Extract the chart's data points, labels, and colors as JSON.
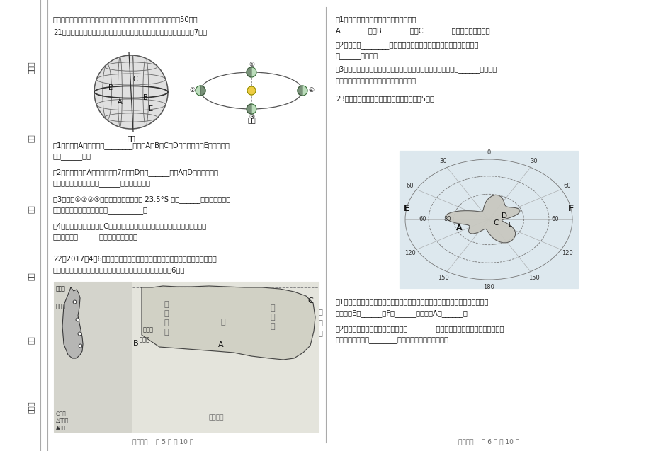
{
  "page_bg": "#ffffff",
  "paper_bg": "#ffffff",
  "text_color": "#1a1a1a",
  "figsize": [
    9.2,
    6.37
  ],
  "dpi": 100,
  "left_sidebar_labels": [
    "座位号",
    "考号",
    "姓名",
    "班级",
    "学校",
    "旗县区"
  ],
  "footer_left": "地理试题    第 5 页 共 10 页",
  "footer_right": "地理试题    第 6 页 共 10 页",
  "section_header": "二、综合题：（请将正确答案按要求写在答题卡对应位置上，本题偂50分）",
  "q21_header": "21、读「经纬网图甲和地球公转运动的二分二至日图乙」，回答问题：（7分）",
  "q21_1a": "（1）图甲中A点的经度是________，图中A、B、C、D四点中，位于E点西南方向",
  "q21_1b": "的是______点。",
  "q21_2a": "（2）图乙中，当A地为一年中的7月时，D地为______季，A、D两地同一时期",
  "q21_2b": "季节相反，是由于地球的______转运动造成的。",
  "q21_3a": "（3）图乙①②③④四个位置中，太阳直射 23.5°S 的是______（填序号），此",
  "q21_3b": "时，赤峰市的昼夜长短情况是__________。",
  "q21_4a": "（4）当太阳直射点在图甲C点所在的纬线上，并且向北移动时，则地球处在图乙",
  "q21_4b": "公转轨道上的______（填序号）处附近。",
  "q22_header1": "22、2017年4月6日，国家主席习近平乘专机抄达美国佛罗里达州，在海湖庄园",
  "q22_header2": "同美国总统特朗普举行中美会晊。结合下图，回答下列问题：（6分）",
  "q22_r1": "（1）写出图中字母代表的地理事物名称：",
  "q22_r1b": "A________河，B________洋，C________（美国最大城市）。",
  "q22_r2": "（2）美国的________（地形类型）面积广大，这有利于农业的机械化",
  "q22_r2b": "和______化生产。",
  "q22_r3": "（3）目前，美国经济增长主要得益于高新技术产业的发展。位于______（城市）",
  "q22_r3b": "东南的硬谷，成为美国高新技术产业中心。",
  "q23_header": "23、读「南极地区图」，回答下列问题：（5分）",
  "q23_1a": "（1）南极洲是一块陆地，周围却是一片汪洋，给地球带来神秘色彩，南极大陆周",
  "q23_1b": "围的大洋E是______，F是______，科考站A是______。",
  "q23_2a": "（2）南极大陆素有「冰雪高原」、「________」、「风库」之称，环境极其恶劣，",
  "q23_2b": "但仍有生命存在。________就是南极大陆的真正主人。"
}
